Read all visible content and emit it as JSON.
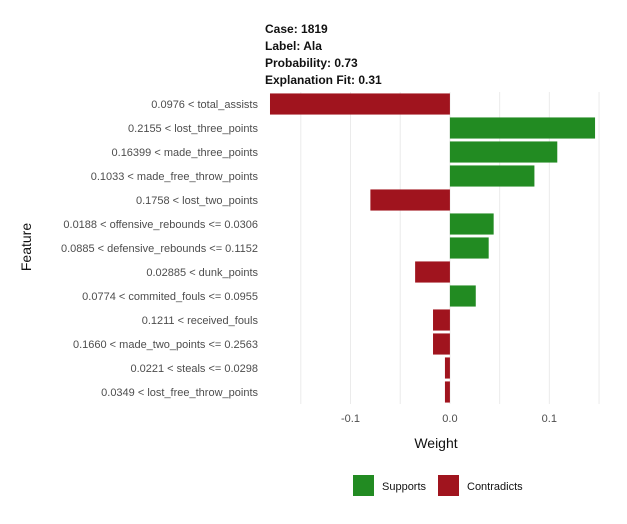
{
  "header": {
    "case": "Case: 1819",
    "label": "Label: Ala",
    "probability": "Probability: 0.73",
    "fit": "Explanation Fit: 0.31"
  },
  "colors": {
    "supports": "#228B22",
    "contradicts": "#A0141E",
    "grid": "#ebebeb"
  },
  "chart_data": {
    "type": "bar",
    "orientation": "horizontal",
    "xlabel": "Weight",
    "ylabel": "Feature",
    "xlim": [
      -0.183,
      0.155
    ],
    "xticks": [
      -0.1,
      0.0,
      0.1
    ],
    "xtick_labels": [
      "-0.1",
      "0.0",
      "0.1"
    ],
    "grid": true,
    "legend_position": "bottom",
    "legend": [
      "Supports",
      "Contradicts"
    ],
    "categories": [
      "0.0976 < total_assists",
      "0.2155 < lost_three_points",
      "0.16399 < made_three_points",
      "0.1033 < made_free_throw_points",
      "0.1758 < lost_two_points",
      "0.0188 < offensive_rebounds <= 0.0306",
      "0.0885 < defensive_rebounds <= 0.1152",
      "0.02885 < dunk_points",
      "0.0774 < commited_fouls <= 0.0955",
      "0.1211 < received_fouls",
      "0.1660 < made_two_points <= 0.2563",
      "0.0221 < steals <= 0.0298",
      "0.0349 < lost_free_throw_points"
    ],
    "values": [
      -0.181,
      0.146,
      0.108,
      0.085,
      -0.08,
      0.044,
      0.039,
      -0.035,
      0.026,
      -0.017,
      -0.017,
      -0.005,
      -0.005
    ]
  }
}
